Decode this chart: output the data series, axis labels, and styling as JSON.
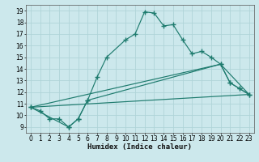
{
  "xlabel": "Humidex (Indice chaleur)",
  "bg_color": "#cce8ec",
  "line_color": "#1e7b6e",
  "grid_color": "#b0d4d8",
  "xlim": [
    -0.5,
    23.5
  ],
  "ylim": [
    8.5,
    19.5
  ],
  "xticks": [
    0,
    1,
    2,
    3,
    4,
    5,
    6,
    7,
    8,
    9,
    10,
    11,
    12,
    13,
    14,
    15,
    16,
    17,
    18,
    19,
    20,
    21,
    22,
    23
  ],
  "yticks": [
    9,
    10,
    11,
    12,
    13,
    14,
    15,
    16,
    17,
    18,
    19
  ],
  "line1_x": [
    0,
    1,
    2,
    3,
    4,
    5,
    6,
    7,
    8,
    10,
    11,
    12,
    13,
    14,
    15,
    16,
    17,
    18,
    19,
    20,
    21,
    22,
    23
  ],
  "line1_y": [
    10.7,
    10.4,
    9.7,
    9.7,
    9.0,
    9.7,
    11.3,
    13.3,
    15.0,
    16.5,
    17.0,
    18.9,
    18.8,
    17.7,
    17.8,
    16.5,
    15.3,
    15.5,
    15.0,
    14.4,
    12.8,
    12.3,
    11.8
  ],
  "line2_x": [
    0,
    4,
    5,
    6,
    20,
    21,
    22,
    23
  ],
  "line2_y": [
    10.7,
    9.0,
    9.7,
    11.3,
    14.4,
    12.8,
    12.3,
    11.8
  ],
  "line3_x": [
    0,
    23
  ],
  "line3_y": [
    10.7,
    11.8
  ],
  "line4_x": [
    0,
    20,
    23
  ],
  "line4_y": [
    10.7,
    14.4,
    11.8
  ]
}
